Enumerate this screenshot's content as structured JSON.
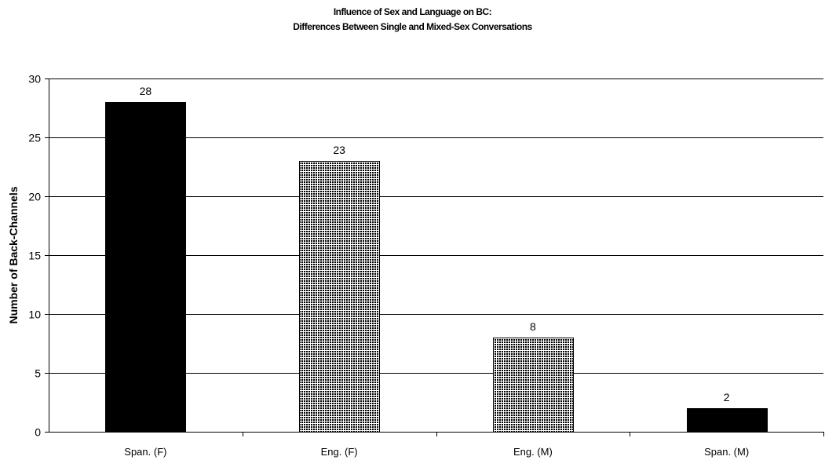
{
  "chart_data": {
    "type": "bar",
    "title": "Influence of Sex and Language on BC:",
    "subtitle": "Differences Between Single and Mixed-Sex Conversations",
    "xlabel": "",
    "ylabel": "Number of Back-Channels",
    "ylim": [
      0,
      30
    ],
    "yticks": [
      0,
      5,
      10,
      15,
      20,
      25,
      30
    ],
    "grid": true,
    "categories": [
      "Span. (F)",
      "Eng. (F)",
      "Eng. (M)",
      "Span. (M)"
    ],
    "values": [
      28,
      23,
      8,
      2
    ],
    "data_labels": [
      "28",
      "23",
      "8",
      "2"
    ],
    "bar_fills": [
      "solid",
      "dotted",
      "dotted",
      "solid"
    ],
    "colors": {
      "solid": "#000000",
      "dotted_fg": "#000000",
      "dotted_bg": "#ffffff",
      "grid": "#000000",
      "axis": "#000000"
    }
  }
}
